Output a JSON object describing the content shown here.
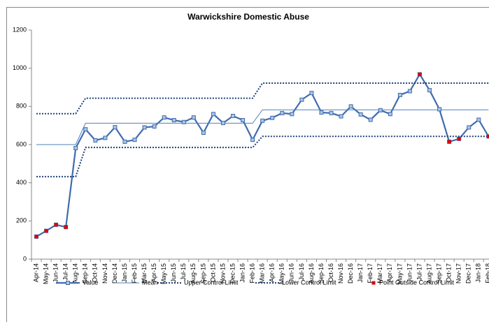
{
  "chart_data": {
    "type": "line",
    "title": "Warwickshire Domestic Abuse",
    "categories": [
      "Apr-14",
      "May-14",
      "Jun-14",
      "Jul-14",
      "Aug-14",
      "Sep-14",
      "Oct-14",
      "Nov-14",
      "Dec-14",
      "Jan-15",
      "Feb-15",
      "Mar-15",
      "Apr-15",
      "May-15",
      "Jun-15",
      "Jul-15",
      "Aug-15",
      "Sep-15",
      "Oct-15",
      "Nov-15",
      "Dec-15",
      "Jan-16",
      "Feb-16",
      "Mar-16",
      "Apr-16",
      "May-16",
      "Jun-16",
      "Jul-16",
      "Aug-16",
      "Sep-16",
      "Oct-16",
      "Nov-16",
      "Dec-16",
      "Jan-17",
      "Feb-17",
      "Mar-17",
      "Apr-17",
      "May-17",
      "Jun-17",
      "Jul-17",
      "Aug-17",
      "Sep-17",
      "Oct-17",
      "Nov-17",
      "Dec-17",
      "Jan-18",
      "Feb-18"
    ],
    "series": [
      {
        "name": "Value",
        "color": "#3f6cad",
        "line_style": "solid",
        "marker": true,
        "values": [
          118,
          148,
          180,
          168,
          582,
          680,
          622,
          635,
          691,
          615,
          625,
          690,
          695,
          742,
          728,
          718,
          742,
          662,
          760,
          713,
          750,
          728,
          625,
          725,
          740,
          765,
          760,
          835,
          870,
          768,
          765,
          748,
          800,
          758,
          730,
          780,
          760,
          860,
          880,
          968,
          885,
          785,
          615,
          630,
          690,
          730,
          643
        ]
      },
      {
        "name": "Mean",
        "color": "#4f81bd",
        "line_style": "thin",
        "marker": false,
        "values": [
          600,
          600,
          600,
          600,
          600,
          712,
          712,
          712,
          712,
          712,
          712,
          712,
          712,
          712,
          712,
          712,
          712,
          712,
          712,
          712,
          712,
          712,
          712,
          782,
          782,
          782,
          782,
          782,
          782,
          782,
          782,
          782,
          782,
          782,
          782,
          782,
          782,
          782,
          782,
          782,
          782,
          782,
          782,
          782,
          782,
          782,
          782
        ]
      },
      {
        "name": "Upper Control Limit",
        "color": "#1f3f7a",
        "line_style": "dotted",
        "marker": false,
        "values": [
          762,
          762,
          762,
          762,
          762,
          843,
          843,
          843,
          843,
          843,
          843,
          843,
          843,
          843,
          843,
          843,
          843,
          843,
          843,
          843,
          843,
          843,
          843,
          922,
          922,
          922,
          922,
          922,
          922,
          922,
          922,
          922,
          922,
          922,
          922,
          922,
          922,
          922,
          922,
          922,
          922,
          922,
          922,
          922,
          922,
          922,
          922
        ]
      },
      {
        "name": "Lower Control Limit",
        "color": "#1f3f7a",
        "line_style": "dotted",
        "marker": false,
        "values": [
          432,
          432,
          432,
          432,
          432,
          585,
          585,
          585,
          585,
          585,
          585,
          585,
          585,
          585,
          585,
          585,
          585,
          585,
          585,
          585,
          585,
          585,
          585,
          643,
          643,
          643,
          643,
          643,
          643,
          643,
          643,
          643,
          643,
          643,
          643,
          643,
          643,
          643,
          643,
          643,
          643,
          643,
          643,
          643,
          643,
          643,
          643
        ]
      },
      {
        "name": "Point Outside Control Limit",
        "color": "#e00000",
        "line_style": "none",
        "marker": true,
        "values": [
          118,
          148,
          180,
          168,
          null,
          null,
          null,
          null,
          null,
          null,
          null,
          null,
          null,
          null,
          null,
          null,
          null,
          null,
          null,
          null,
          null,
          null,
          null,
          null,
          null,
          null,
          null,
          null,
          null,
          null,
          null,
          null,
          null,
          null,
          null,
          null,
          null,
          null,
          null,
          968,
          null,
          null,
          615,
          630,
          null,
          null,
          643
        ]
      }
    ],
    "ylim": [
      0,
      1200
    ],
    "yticks": [
      0,
      200,
      400,
      600,
      800,
      1000,
      1200
    ],
    "legend": "bottom"
  }
}
